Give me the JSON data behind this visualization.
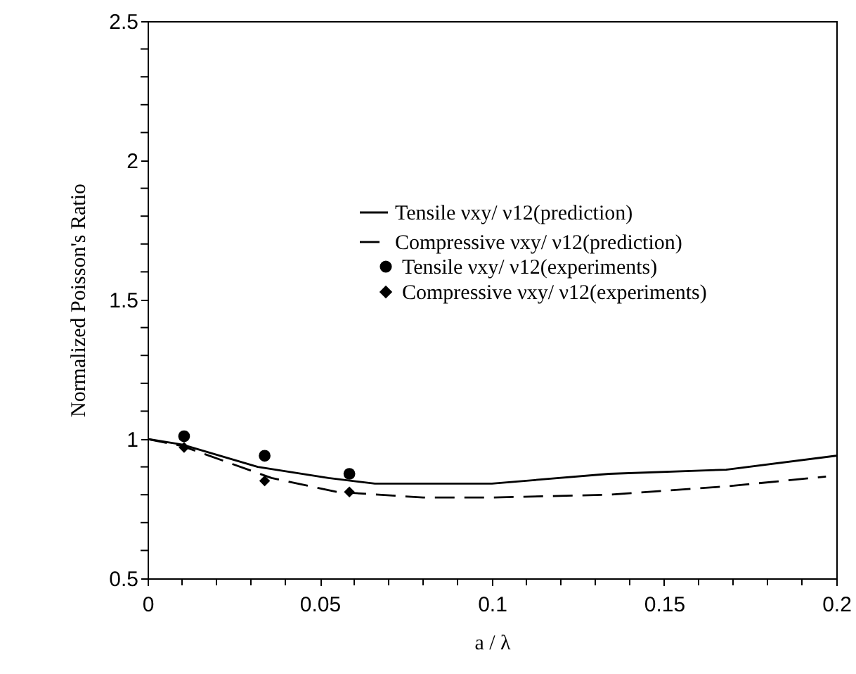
{
  "chart_data": {
    "type": "line",
    "xlabel": "a / λ",
    "ylabel": "Normalized Poisson's Ratio",
    "xlim": [
      0,
      0.2
    ],
    "ylim": [
      0.5,
      2.5
    ],
    "xticks": [
      0,
      {
        "value": 0.01,
        "label": null
      },
      {
        "value": 0.02,
        "label": null
      },
      {
        "value": 0.03,
        "label": null
      },
      {
        "value": 0.04,
        "label": null
      },
      0.05,
      {
        "value": 0.06,
        "label": null
      },
      {
        "value": 0.07,
        "label": null
      },
      {
        "value": 0.08,
        "label": null
      },
      {
        "value": 0.09,
        "label": null
      },
      0.1,
      {
        "value": 0.11,
        "label": null
      },
      {
        "value": 0.12,
        "label": null
      },
      {
        "value": 0.13,
        "label": null
      },
      {
        "value": 0.14,
        "label": null
      },
      0.15,
      {
        "value": 0.16,
        "label": null
      },
      {
        "value": 0.17,
        "label": null
      },
      {
        "value": 0.18,
        "label": null
      },
      {
        "value": 0.19,
        "label": null
      },
      0.2
    ],
    "yticks": [
      0.5,
      {
        "value": 0.6,
        "label": null
      },
      {
        "value": 0.7,
        "label": null
      },
      {
        "value": 0.8,
        "label": null
      },
      {
        "value": 0.9,
        "label": null
      },
      1,
      {
        "value": 1.1,
        "label": null
      },
      {
        "value": 1.2,
        "label": null
      },
      {
        "value": 1.3,
        "label": null
      },
      {
        "value": 1.4,
        "label": null
      },
      1.5,
      {
        "value": 1.6,
        "label": null
      },
      {
        "value": 1.7,
        "label": null
      },
      {
        "value": 1.8,
        "label": null
      },
      {
        "value": 1.9,
        "label": null
      },
      2,
      {
        "value": 2.1,
        "label": null
      },
      {
        "value": 2.2,
        "label": null
      },
      {
        "value": 2.3,
        "label": null
      },
      {
        "value": 2.4,
        "label": null
      },
      2.5
    ],
    "grid": false,
    "legend": "right",
    "series": [
      {
        "name": "Tensile νxy/ ν12(prediction)",
        "color": "#000000",
        "line_style": "solid",
        "x": [
          0,
          0.01,
          0.032,
          0.0525,
          0.066,
          0.1,
          0.134,
          0.168,
          0.2
        ],
        "values": [
          1.0,
          0.98,
          0.9,
          0.86,
          0.84,
          0.84,
          0.875,
          0.89,
          0.94
        ]
      },
      {
        "name": "Compressive νxy/ ν12(prediction)",
        "color": "#000000",
        "line_style": "dashed",
        "x": [
          0,
          0.01,
          0.036,
          0.055,
          0.08,
          0.1,
          0.134,
          0.168,
          0.197
        ],
        "values": [
          1.0,
          0.975,
          0.86,
          0.81,
          0.79,
          0.79,
          0.8,
          0.83,
          0.865
        ]
      },
      {
        "type": "scatter",
        "name": "Tensile νxy/ ν12(experiments)",
        "color": "#000000",
        "marker": "circle",
        "x": [
          0.0106,
          0.034,
          0.0586
        ],
        "values": [
          1.01,
          0.94,
          0.875
        ]
      },
      {
        "type": "scatter",
        "name": "Compressive νxy/ ν12(experiments)",
        "color": "#000000",
        "marker": "diamond",
        "x": [
          0.0106,
          0.034,
          0.0586
        ],
        "values": [
          0.97,
          0.85,
          0.81
        ]
      }
    ]
  }
}
